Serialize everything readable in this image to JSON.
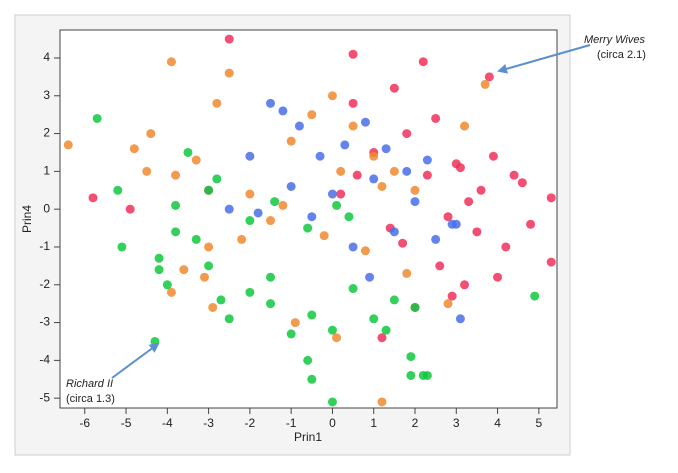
{
  "chart_data": {
    "type": "scatter",
    "x_label": "Prin1",
    "y_label": "Prin4",
    "xlim": [
      -6.6,
      5.44
    ],
    "ylim": [
      -5.26,
      4.74
    ],
    "xticks": [
      -6,
      -5,
      -4,
      -3,
      -2,
      -1,
      0,
      1,
      2,
      3,
      4,
      5
    ],
    "yticks": [
      -5,
      -4,
      -3,
      -2,
      -1,
      0,
      1,
      2,
      3,
      4
    ],
    "series": [
      {
        "color": "#f0305a",
        "x": [
          3.8,
          5.3,
          5.3,
          4.6,
          4.2,
          3.5,
          3.9,
          2.8,
          2.2,
          1.5,
          0.5,
          1.8,
          2.5,
          3.0,
          3.6,
          4.0,
          4.8,
          3.2,
          2.0,
          1.0,
          0.6,
          1.4,
          2.6,
          3.3,
          4.4,
          -4.9,
          -5.8,
          -2.5,
          0.5,
          1.2,
          2.3,
          -3.0,
          1.7,
          2.9,
          3.1,
          0.2
        ],
        "values": [
          3.5,
          0.3,
          -1.4,
          0.7,
          -1.0,
          -0.6,
          1.4,
          -0.2,
          3.9,
          3.2,
          4.1,
          2.0,
          2.4,
          1.2,
          0.5,
          -1.8,
          -0.4,
          -2.0,
          -2.6,
          1.5,
          0.9,
          -0.5,
          -1.5,
          0.2,
          0.9,
          0.0,
          0.3,
          4.5,
          2.8,
          -3.4,
          0.9,
          0.5,
          -0.9,
          -2.3,
          1.1,
          0.4
        ]
      },
      {
        "color": "#f08a30",
        "x": [
          -6.4,
          -3.9,
          -3.8,
          -2.5,
          -2.8,
          -4.4,
          -3.3,
          -1.0,
          -0.5,
          0.0,
          0.5,
          1.0,
          1.5,
          2.0,
          -1.5,
          -2.0,
          -3.0,
          -3.6,
          -4.5,
          -4.8,
          -2.2,
          -1.2,
          -0.2,
          0.8,
          1.8,
          3.7,
          2.8,
          1.2,
          0.1,
          -0.9,
          -3.1,
          -3.9,
          -2.9,
          1.2,
          0.2,
          3.2
        ],
        "values": [
          1.7,
          3.9,
          0.9,
          3.6,
          2.8,
          2.0,
          1.3,
          1.8,
          2.5,
          3.0,
          2.2,
          1.4,
          1.0,
          0.5,
          -0.3,
          0.4,
          -1.0,
          -1.6,
          1.0,
          1.6,
          -0.8,
          0.1,
          -0.7,
          -1.1,
          -1.7,
          3.3,
          -2.5,
          -5.1,
          -3.4,
          -3.0,
          -1.8,
          -2.2,
          -2.6,
          0.6,
          1.0,
          2.2
        ]
      },
      {
        "color": "#4a6ee8",
        "x": [
          -1.5,
          -1.2,
          -0.8,
          -0.3,
          0.3,
          0.8,
          1.3,
          1.8,
          2.3,
          -2.0,
          -1.0,
          0.0,
          1.0,
          2.0,
          3.0,
          -2.5,
          -0.5,
          0.5,
          1.5,
          2.5,
          3.1,
          2.9,
          -1.8,
          0.9
        ],
        "values": [
          2.8,
          2.6,
          2.2,
          1.4,
          1.7,
          2.3,
          1.6,
          1.0,
          1.3,
          1.4,
          0.6,
          0.4,
          0.8,
          0.2,
          -0.4,
          0.0,
          -0.2,
          -1.0,
          -0.6,
          -0.8,
          -2.9,
          -0.4,
          -0.1,
          -1.8
        ]
      },
      {
        "color": "#10c840",
        "x": [
          -5.7,
          -5.2,
          -5.1,
          -4.3,
          -4.2,
          -4.0,
          -3.8,
          -3.5,
          -3.3,
          -3.0,
          -2.7,
          -2.5,
          -2.0,
          -1.5,
          -1.0,
          -0.5,
          0.0,
          0.5,
          1.0,
          1.5,
          2.0,
          -3.8,
          -3.0,
          -2.0,
          -1.4,
          -0.6,
          0.1,
          0.4,
          1.3,
          1.9,
          2.3,
          -0.6,
          -0.5,
          0.0,
          1.9,
          2.2,
          4.9,
          -4.2,
          -1.5,
          -2.8
        ],
        "values": [
          2.4,
          0.5,
          -1.0,
          -3.5,
          -1.6,
          -2.0,
          0.1,
          1.5,
          -0.8,
          -1.5,
          -2.4,
          -2.9,
          -2.2,
          -2.5,
          -3.3,
          -2.8,
          -3.2,
          -2.1,
          -2.9,
          -2.4,
          -2.6,
          -0.6,
          0.5,
          -0.3,
          0.2,
          -0.5,
          0.1,
          -0.2,
          -3.2,
          -3.9,
          -4.4,
          -4.0,
          -4.5,
          -5.1,
          -4.4,
          -4.4,
          -2.3,
          -1.3,
          -1.8,
          0.8
        ]
      }
    ],
    "annotations": [
      {
        "text": "Merry Wives",
        "note": "(circa 2.1)"
      },
      {
        "text": "Richard II",
        "note": "(circa 1.3)"
      }
    ]
  }
}
